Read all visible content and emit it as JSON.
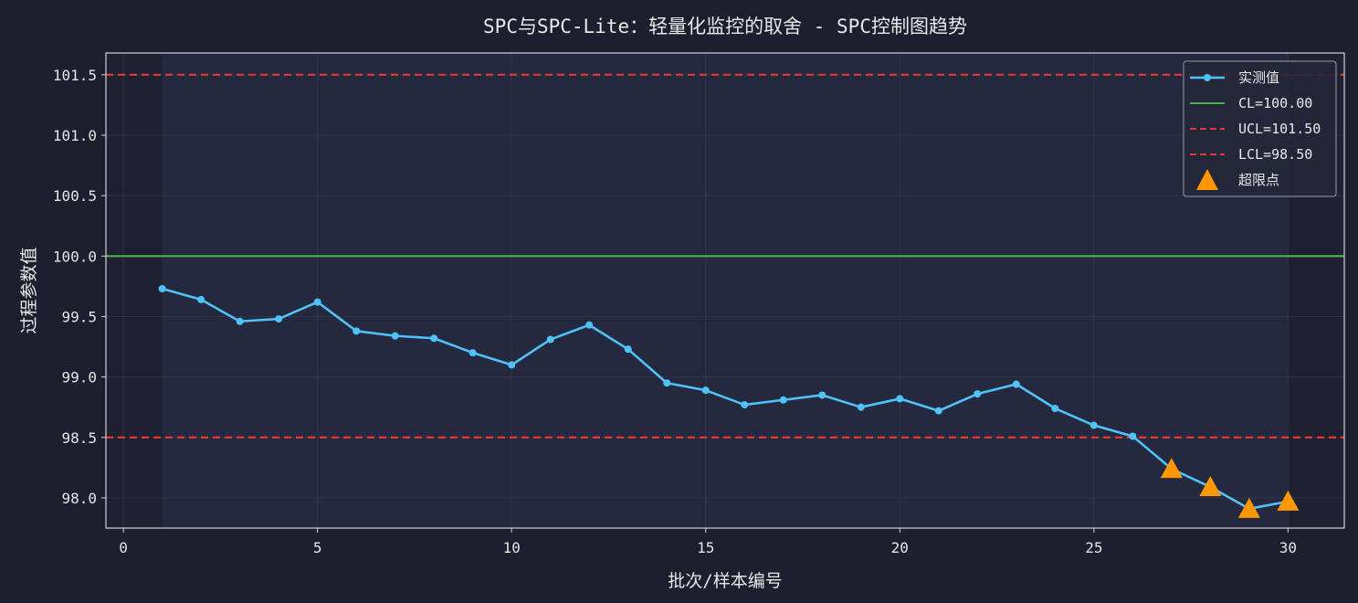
{
  "chart_data": {
    "type": "line",
    "title": "SPC与SPC-Lite：轻量化监控的取舍 - SPC控制图趋势",
    "xlabel": "批次/样本编号",
    "ylabel": "过程参数值",
    "xlim": [
      -0.45,
      31.45
    ],
    "ylim": [
      97.75,
      101.68
    ],
    "xticks": [
      0,
      5,
      10,
      15,
      20,
      25,
      30
    ],
    "yticks": [
      98.0,
      98.5,
      99.0,
      99.5,
      100.0,
      100.5,
      101.0,
      101.5
    ],
    "ytick_labels": [
      "98.0",
      "98.5",
      "99.0",
      "99.5",
      "100.0",
      "100.5",
      "101.0",
      "101.5"
    ],
    "grid": true,
    "legend_position": "top-right",
    "shaded_x_range": [
      1,
      30
    ],
    "series": [
      {
        "name": "实测值",
        "color": "#4fc3f7",
        "x": [
          1,
          2,
          3,
          4,
          5,
          6,
          7,
          8,
          9,
          10,
          11,
          12,
          13,
          14,
          15,
          16,
          17,
          18,
          19,
          20,
          21,
          22,
          23,
          24,
          25,
          26,
          27,
          28,
          29,
          30
        ],
        "values": [
          99.73,
          99.64,
          99.46,
          99.48,
          99.62,
          99.38,
          99.34,
          99.32,
          99.2,
          99.1,
          99.31,
          99.43,
          99.23,
          98.95,
          98.89,
          98.77,
          98.81,
          98.85,
          98.75,
          98.82,
          98.72,
          98.86,
          98.94,
          98.74,
          98.6,
          98.51,
          98.24,
          98.09,
          97.91,
          97.97
        ]
      }
    ],
    "reference_lines": [
      {
        "name": "CL=100.00",
        "value": 100.0,
        "color": "#4caf50",
        "style": "solid"
      },
      {
        "name": "UCL=101.50",
        "value": 101.5,
        "color": "#e53935",
        "style": "dashed"
      },
      {
        "name": "LCL=98.50",
        "value": 98.5,
        "color": "#e53935",
        "style": "dashed"
      }
    ],
    "out_of_control": {
      "name": "超限点",
      "color": "#ff9800",
      "x": [
        27,
        28,
        29,
        30
      ],
      "values": [
        98.24,
        98.09,
        97.91,
        97.97
      ]
    }
  }
}
